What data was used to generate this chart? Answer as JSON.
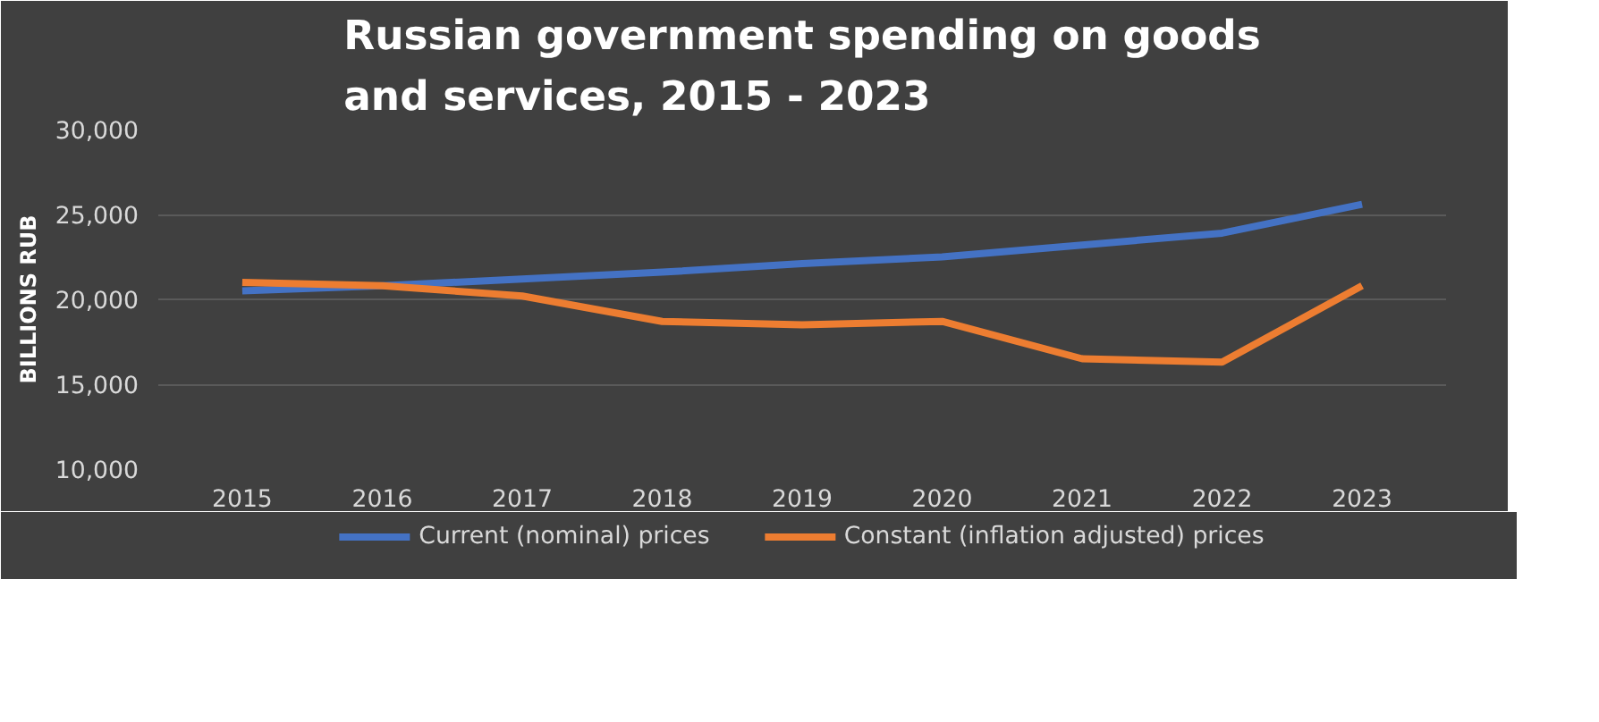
{
  "chart_data": {
    "type": "line",
    "title": "Russian government spending on goods and services, 2015 - 2023",
    "ylabel": "BILLIONS RUB",
    "categories": [
      "2015",
      "2016",
      "2017",
      "2018",
      "2019",
      "2020",
      "2021",
      "2022",
      "2023"
    ],
    "series": [
      {
        "name": "Current (nominal) prices",
        "color": "#4472c4",
        "values": [
          20500,
          20800,
          21200,
          21600,
          22100,
          22500,
          23200,
          23900,
          25600
        ]
      },
      {
        "name": "Constant (inflation adjusted) prices",
        "color": "#ed7d31",
        "values": [
          21000,
          20800,
          20200,
          18700,
          18500,
          18700,
          16500,
          16300,
          20800
        ]
      }
    ],
    "ylim": [
      10000,
      30000
    ],
    "yticks": [
      {
        "value": 10000,
        "label": "10,000"
      },
      {
        "value": 15000,
        "label": "15,000"
      },
      {
        "value": 20000,
        "label": "20,000"
      },
      {
        "value": 25000,
        "label": "25,000"
      },
      {
        "value": 30000,
        "label": "30,000"
      }
    ],
    "grid": "y",
    "legend": "bottom",
    "marker": "none",
    "line_style": "solid"
  }
}
